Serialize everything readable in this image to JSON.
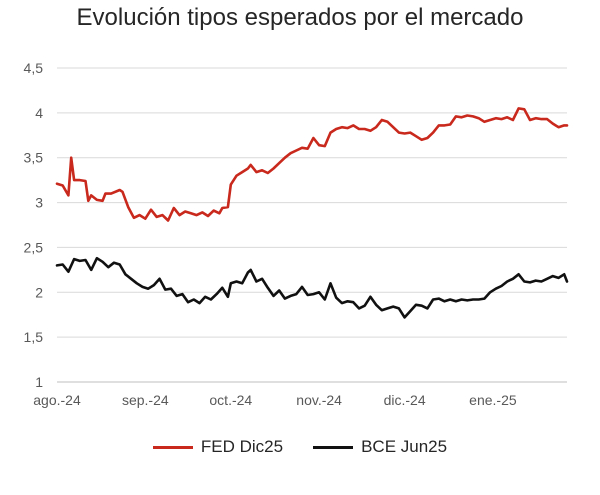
{
  "chart_data": {
    "type": "line",
    "title": "Evolución tipos esperados por el mercado",
    "xlabel": "",
    "ylabel": "",
    "x_start": "2024-08-01",
    "x_end": "2025-01-27",
    "xticks": [
      {
        "date": "2024-08-01",
        "label": "ago.-24"
      },
      {
        "date": "2024-09-01",
        "label": "sep.-24"
      },
      {
        "date": "2024-10-01",
        "label": "oct.-24"
      },
      {
        "date": "2024-11-01",
        "label": "nov.-24"
      },
      {
        "date": "2024-12-01",
        "label": "dic.-24"
      },
      {
        "date": "2025-01-01",
        "label": "ene.-25"
      }
    ],
    "ylim": [
      1,
      4.5
    ],
    "yticks": [
      {
        "value": 1,
        "label": "1"
      },
      {
        "value": 1.5,
        "label": "1,5"
      },
      {
        "value": 2,
        "label": "2"
      },
      {
        "value": 2.5,
        "label": "2,5"
      },
      {
        "value": 3,
        "label": "3"
      },
      {
        "value": 3.5,
        "label": "3,5"
      },
      {
        "value": 4,
        "label": "4"
      },
      {
        "value": 4.5,
        "label": "4,5"
      }
    ],
    "grid": "horizontal",
    "legend_position": "bottom",
    "series": [
      {
        "name": "FED Dic25",
        "color": "#c9281c",
        "points": [
          [
            "2024-08-01",
            3.21
          ],
          [
            "2024-08-03",
            3.19
          ],
          [
            "2024-08-05",
            3.08
          ],
          [
            "2024-08-06",
            3.5
          ],
          [
            "2024-08-07",
            3.25
          ],
          [
            "2024-08-09",
            3.25
          ],
          [
            "2024-08-11",
            3.24
          ],
          [
            "2024-08-12",
            3.02
          ],
          [
            "2024-08-13",
            3.08
          ],
          [
            "2024-08-15",
            3.03
          ],
          [
            "2024-08-17",
            3.02
          ],
          [
            "2024-08-18",
            3.1
          ],
          [
            "2024-08-20",
            3.1
          ],
          [
            "2024-08-23",
            3.14
          ],
          [
            "2024-08-24",
            3.12
          ],
          [
            "2024-08-26",
            2.95
          ],
          [
            "2024-08-28",
            2.83
          ],
          [
            "2024-08-30",
            2.86
          ],
          [
            "2024-09-01",
            2.82
          ],
          [
            "2024-09-03",
            2.92
          ],
          [
            "2024-09-05",
            2.84
          ],
          [
            "2024-09-07",
            2.86
          ],
          [
            "2024-09-09",
            2.8
          ],
          [
            "2024-09-11",
            2.94
          ],
          [
            "2024-09-13",
            2.86
          ],
          [
            "2024-09-15",
            2.9
          ],
          [
            "2024-09-17",
            2.88
          ],
          [
            "2024-09-19",
            2.86
          ],
          [
            "2024-09-21",
            2.89
          ],
          [
            "2024-09-23",
            2.85
          ],
          [
            "2024-09-25",
            2.91
          ],
          [
            "2024-09-27",
            2.88
          ],
          [
            "2024-09-28",
            2.94
          ],
          [
            "2024-09-30",
            2.95
          ],
          [
            "2024-10-01",
            3.2
          ],
          [
            "2024-10-03",
            3.3
          ],
          [
            "2024-10-05",
            3.34
          ],
          [
            "2024-10-07",
            3.38
          ],
          [
            "2024-10-08",
            3.42
          ],
          [
            "2024-10-10",
            3.34
          ],
          [
            "2024-10-12",
            3.36
          ],
          [
            "2024-10-14",
            3.33
          ],
          [
            "2024-10-16",
            3.38
          ],
          [
            "2024-10-18",
            3.44
          ],
          [
            "2024-10-20",
            3.5
          ],
          [
            "2024-10-22",
            3.55
          ],
          [
            "2024-10-24",
            3.58
          ],
          [
            "2024-10-26",
            3.61
          ],
          [
            "2024-10-28",
            3.6
          ],
          [
            "2024-10-30",
            3.72
          ],
          [
            "2024-11-01",
            3.64
          ],
          [
            "2024-11-03",
            3.63
          ],
          [
            "2024-11-05",
            3.78
          ],
          [
            "2024-11-07",
            3.82
          ],
          [
            "2024-11-09",
            3.84
          ],
          [
            "2024-11-11",
            3.83
          ],
          [
            "2024-11-13",
            3.86
          ],
          [
            "2024-11-15",
            3.82
          ],
          [
            "2024-11-17",
            3.82
          ],
          [
            "2024-11-19",
            3.8
          ],
          [
            "2024-11-21",
            3.84
          ],
          [
            "2024-11-23",
            3.92
          ],
          [
            "2024-11-25",
            3.9
          ],
          [
            "2024-11-27",
            3.84
          ],
          [
            "2024-11-29",
            3.78
          ],
          [
            "2024-12-01",
            3.77
          ],
          [
            "2024-12-03",
            3.78
          ],
          [
            "2024-12-05",
            3.74
          ],
          [
            "2024-12-07",
            3.7
          ],
          [
            "2024-12-09",
            3.72
          ],
          [
            "2024-12-11",
            3.78
          ],
          [
            "2024-12-13",
            3.86
          ],
          [
            "2024-12-15",
            3.86
          ],
          [
            "2024-12-17",
            3.87
          ],
          [
            "2024-12-19",
            3.96
          ],
          [
            "2024-12-21",
            3.95
          ],
          [
            "2024-12-23",
            3.97
          ],
          [
            "2024-12-25",
            3.96
          ],
          [
            "2024-12-27",
            3.94
          ],
          [
            "2024-12-29",
            3.9
          ],
          [
            "2024-12-31",
            3.92
          ],
          [
            "2025-01-02",
            3.94
          ],
          [
            "2025-01-04",
            3.93
          ],
          [
            "2025-01-06",
            3.95
          ],
          [
            "2025-01-08",
            3.92
          ],
          [
            "2025-01-10",
            4.05
          ],
          [
            "2025-01-12",
            4.04
          ],
          [
            "2025-01-14",
            3.92
          ],
          [
            "2025-01-16",
            3.94
          ],
          [
            "2025-01-18",
            3.93
          ],
          [
            "2025-01-20",
            3.93
          ],
          [
            "2025-01-22",
            3.88
          ],
          [
            "2025-01-24",
            3.84
          ],
          [
            "2025-01-26",
            3.86
          ],
          [
            "2025-01-27",
            3.86
          ]
        ]
      },
      {
        "name": "BCE Jun25",
        "color": "#111111",
        "points": [
          [
            "2024-08-01",
            2.3
          ],
          [
            "2024-08-03",
            2.31
          ],
          [
            "2024-08-05",
            2.23
          ],
          [
            "2024-08-07",
            2.37
          ],
          [
            "2024-08-09",
            2.35
          ],
          [
            "2024-08-11",
            2.36
          ],
          [
            "2024-08-13",
            2.25
          ],
          [
            "2024-08-15",
            2.38
          ],
          [
            "2024-08-17",
            2.34
          ],
          [
            "2024-08-19",
            2.28
          ],
          [
            "2024-08-21",
            2.33
          ],
          [
            "2024-08-23",
            2.31
          ],
          [
            "2024-08-25",
            2.2
          ],
          [
            "2024-08-27",
            2.15
          ],
          [
            "2024-08-29",
            2.1
          ],
          [
            "2024-08-31",
            2.06
          ],
          [
            "2024-09-02",
            2.04
          ],
          [
            "2024-09-04",
            2.08
          ],
          [
            "2024-09-06",
            2.15
          ],
          [
            "2024-09-08",
            2.03
          ],
          [
            "2024-09-10",
            2.04
          ],
          [
            "2024-09-12",
            1.96
          ],
          [
            "2024-09-14",
            1.98
          ],
          [
            "2024-09-16",
            1.89
          ],
          [
            "2024-09-18",
            1.92
          ],
          [
            "2024-09-20",
            1.88
          ],
          [
            "2024-09-22",
            1.95
          ],
          [
            "2024-09-24",
            1.92
          ],
          [
            "2024-09-26",
            1.98
          ],
          [
            "2024-09-28",
            2.05
          ],
          [
            "2024-09-30",
            1.95
          ],
          [
            "2024-10-01",
            2.1
          ],
          [
            "2024-10-03",
            2.12
          ],
          [
            "2024-10-05",
            2.1
          ],
          [
            "2024-10-07",
            2.22
          ],
          [
            "2024-10-08",
            2.25
          ],
          [
            "2024-10-10",
            2.12
          ],
          [
            "2024-10-12",
            2.15
          ],
          [
            "2024-10-14",
            2.05
          ],
          [
            "2024-10-16",
            1.96
          ],
          [
            "2024-10-18",
            2.02
          ],
          [
            "2024-10-20",
            1.93
          ],
          [
            "2024-10-22",
            1.96
          ],
          [
            "2024-10-24",
            1.98
          ],
          [
            "2024-10-26",
            2.06
          ],
          [
            "2024-10-28",
            1.97
          ],
          [
            "2024-10-30",
            1.98
          ],
          [
            "2024-11-01",
            2.0
          ],
          [
            "2024-11-03",
            1.92
          ],
          [
            "2024-11-05",
            2.1
          ],
          [
            "2024-11-07",
            1.94
          ],
          [
            "2024-11-09",
            1.88
          ],
          [
            "2024-11-11",
            1.9
          ],
          [
            "2024-11-13",
            1.89
          ],
          [
            "2024-11-15",
            1.82
          ],
          [
            "2024-11-17",
            1.85
          ],
          [
            "2024-11-19",
            1.95
          ],
          [
            "2024-11-21",
            1.86
          ],
          [
            "2024-11-23",
            1.8
          ],
          [
            "2024-11-25",
            1.82
          ],
          [
            "2024-11-27",
            1.84
          ],
          [
            "2024-11-29",
            1.82
          ],
          [
            "2024-12-01",
            1.72
          ],
          [
            "2024-12-03",
            1.79
          ],
          [
            "2024-12-05",
            1.86
          ],
          [
            "2024-12-07",
            1.85
          ],
          [
            "2024-12-09",
            1.82
          ],
          [
            "2024-12-11",
            1.92
          ],
          [
            "2024-12-13",
            1.93
          ],
          [
            "2024-12-15",
            1.9
          ],
          [
            "2024-12-17",
            1.92
          ],
          [
            "2024-12-19",
            1.9
          ],
          [
            "2024-12-21",
            1.92
          ],
          [
            "2024-12-23",
            1.91
          ],
          [
            "2024-12-25",
            1.92
          ],
          [
            "2024-12-27",
            1.92
          ],
          [
            "2024-12-29",
            1.93
          ],
          [
            "2024-12-31",
            2.0
          ],
          [
            "2025-01-02",
            2.04
          ],
          [
            "2025-01-04",
            2.07
          ],
          [
            "2025-01-06",
            2.12
          ],
          [
            "2025-01-08",
            2.15
          ],
          [
            "2025-01-10",
            2.2
          ],
          [
            "2025-01-12",
            2.12
          ],
          [
            "2025-01-14",
            2.11
          ],
          [
            "2025-01-16",
            2.13
          ],
          [
            "2025-01-18",
            2.12
          ],
          [
            "2025-01-20",
            2.15
          ],
          [
            "2025-01-22",
            2.18
          ],
          [
            "2025-01-24",
            2.16
          ],
          [
            "2025-01-26",
            2.2
          ],
          [
            "2025-01-27",
            2.12
          ]
        ]
      }
    ]
  }
}
